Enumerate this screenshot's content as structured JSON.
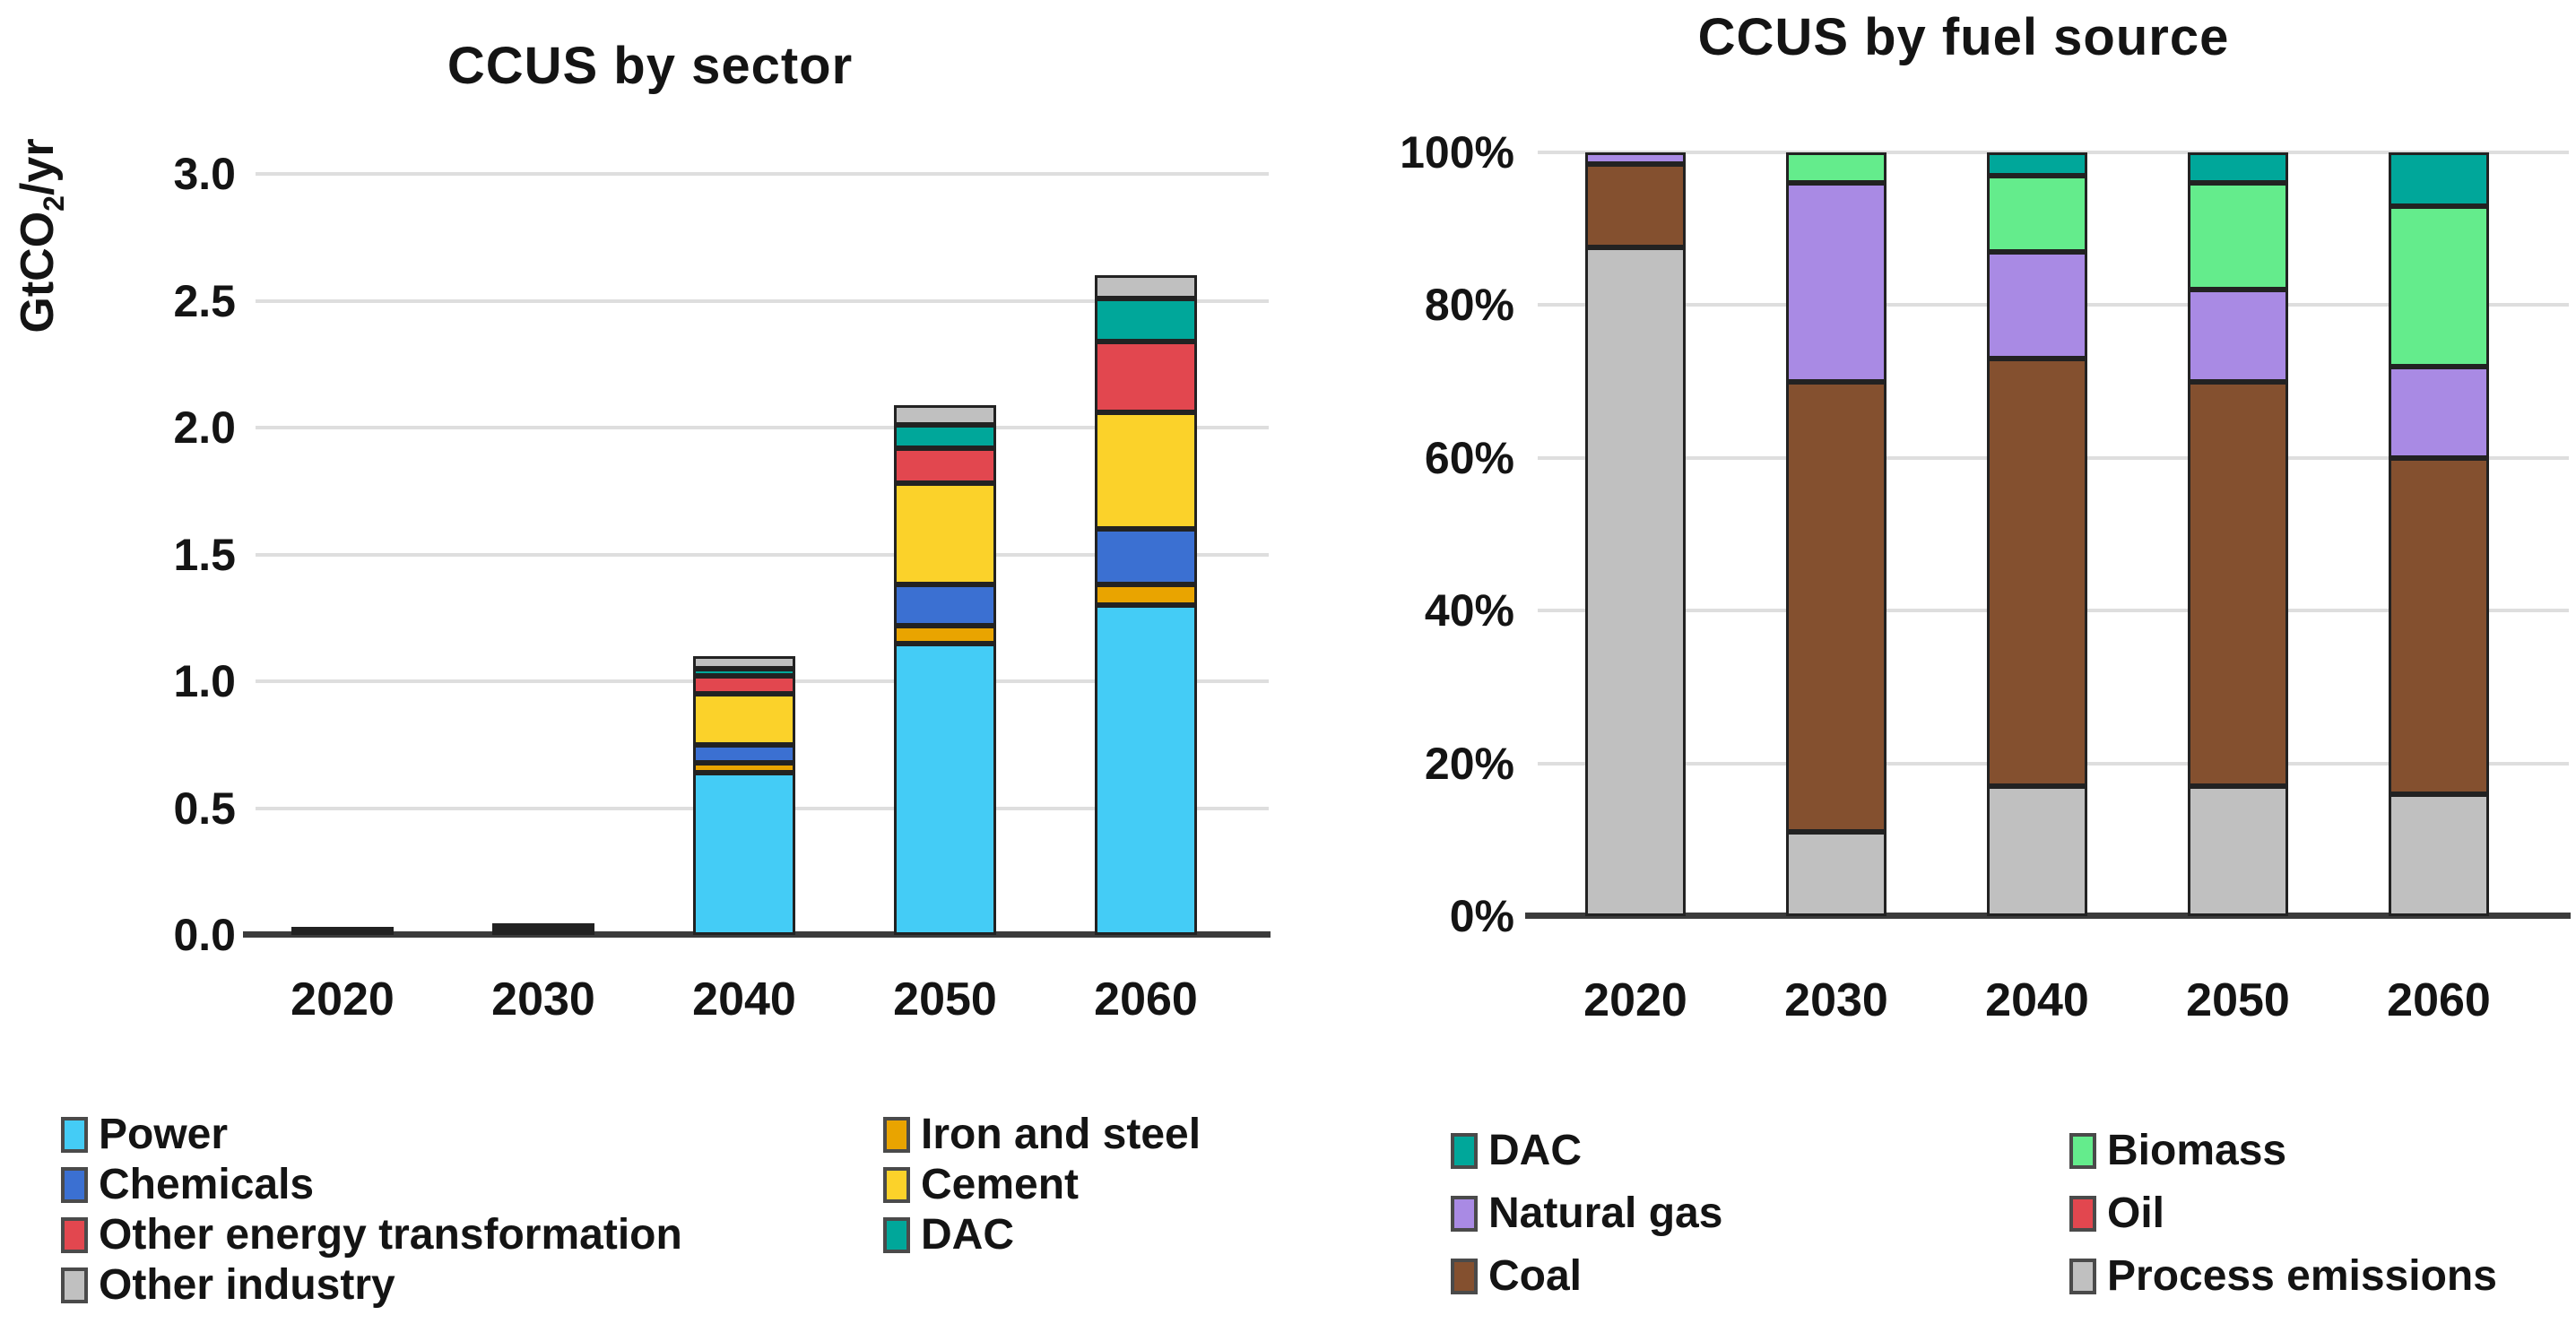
{
  "page": {
    "background": "#ffffff"
  },
  "chart_data": [
    {
      "type": "bar",
      "stacked": true,
      "title": "CCUS by sector",
      "ylabel": {
        "pre": "GtCO",
        "sub": "2",
        "post": "/yr"
      },
      "categories": [
        "2020",
        "2030",
        "2040",
        "2050",
        "2060"
      ],
      "y_ticks": [
        {
          "v": 0.0,
          "label": "0.0"
        },
        {
          "v": 0.5,
          "label": "0.5"
        },
        {
          "v": 1.0,
          "label": "1.0"
        },
        {
          "v": 1.5,
          "label": "1.5"
        },
        {
          "v": 2.0,
          "label": "2.0"
        },
        {
          "v": 2.5,
          "label": "2.5"
        },
        {
          "v": 3.0,
          "label": "3.0"
        }
      ],
      "ylim": [
        0,
        3.1
      ],
      "grid": true,
      "legend_position": "bottom",
      "stack_order": "bottom_to_top",
      "series": [
        {
          "name": "Power",
          "color": "#44CCF6",
          "values": [
            0.004,
            0.01,
            0.64,
            1.15,
            1.3
          ]
        },
        {
          "name": "Iron and steel",
          "color": "#E9A400",
          "values": [
            0.001,
            0.003,
            0.04,
            0.07,
            0.08
          ]
        },
        {
          "name": "Chemicals",
          "color": "#3B70D2",
          "values": [
            0.002,
            0.003,
            0.07,
            0.16,
            0.22
          ]
        },
        {
          "name": "Cement",
          "color": "#FBD22A",
          "values": [
            0.003,
            0.005,
            0.2,
            0.4,
            0.46
          ]
        },
        {
          "name": "Other energy transformation",
          "color": "#E2474F",
          "values": [
            0.001,
            0.002,
            0.07,
            0.14,
            0.28
          ]
        },
        {
          "name": "DAC",
          "color": "#00A79A",
          "values": [
            0,
            0,
            0.03,
            0.09,
            0.17
          ]
        },
        {
          "name": "Other industry",
          "color": "#C0C0C0",
          "values": [
            0.002,
            0.002,
            0.05,
            0.08,
            0.09
          ]
        }
      ],
      "totals": [
        0.013,
        0.025,
        1.1,
        2.09,
        2.6
      ],
      "legend_columns": [
        [
          "Power",
          "Chemicals",
          "Other energy transformation",
          "Other industry"
        ],
        [
          "Iron and steel",
          "Cement",
          "DAC"
        ]
      ]
    },
    {
      "type": "bar",
      "stacked": true,
      "title": "CCUS by fuel source",
      "ylabel": null,
      "values_unit": "percent",
      "categories": [
        "2020",
        "2030",
        "2040",
        "2050",
        "2060"
      ],
      "y_ticks": [
        {
          "v": 0,
          "label": "0%"
        },
        {
          "v": 20,
          "label": "20%"
        },
        {
          "v": 40,
          "label": "40%"
        },
        {
          "v": 60,
          "label": "60%"
        },
        {
          "v": 80,
          "label": "80%"
        },
        {
          "v": 100,
          "label": "100%"
        }
      ],
      "ylim": [
        0,
        100
      ],
      "grid": true,
      "legend_position": "bottom",
      "stack_order": "bottom_to_top",
      "series": [
        {
          "name": "Process emissions",
          "color": "#C0C0C0",
          "values": [
            87.5,
            11,
            17,
            17,
            16
          ]
        },
        {
          "name": "Coal",
          "color": "#84502F",
          "values": [
            11,
            59,
            56,
            53,
            44
          ]
        },
        {
          "name": "Natural gas",
          "color": "#A98AE4",
          "values": [
            1.5,
            26,
            14,
            12,
            12
          ]
        },
        {
          "name": "Biomass",
          "color": "#64EC8C",
          "values": [
            0,
            4,
            10,
            14,
            21
          ]
        },
        {
          "name": "Oil",
          "color": "#E2474F",
          "values": [
            0,
            0,
            0,
            0,
            0
          ]
        },
        {
          "name": "DAC",
          "color": "#00A79A",
          "values": [
            0,
            0,
            3,
            4,
            7
          ]
        }
      ],
      "legend_columns": [
        [
          "DAC",
          "Natural gas",
          "Coal"
        ],
        [
          "Biomass",
          "Oil",
          "Process emissions"
        ]
      ]
    }
  ]
}
